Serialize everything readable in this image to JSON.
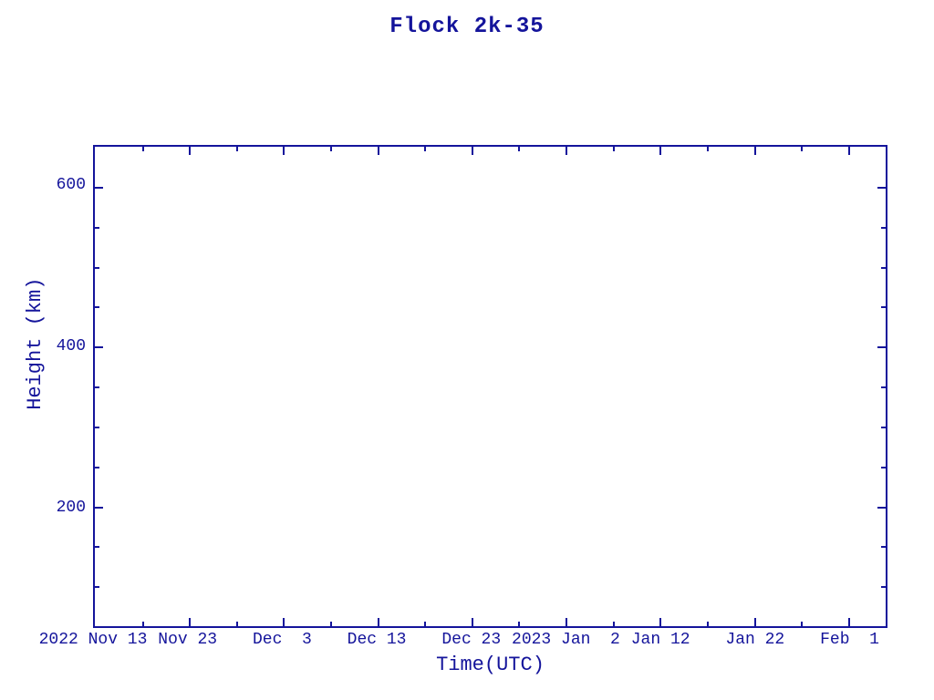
{
  "chart_data": {
    "type": "line",
    "title": "Flock 2k-35",
    "xlabel": "Time(UTC)",
    "ylabel": "Height (km)",
    "plot_color": "#14149b",
    "background": "#ffffff",
    "grid": false,
    "legend": "none",
    "series": [],
    "note_visible_data": "empty plot area - no data points drawn",
    "x_axis": {
      "start_label": "2022 Nov 13",
      "end_value": "2023 Feb 5",
      "span_days": 84,
      "major_ticks": [
        {
          "day": 0,
          "label": "2022 Nov 13"
        },
        {
          "day": 10,
          "label": "Nov 23"
        },
        {
          "day": 20,
          "label": "Dec  3"
        },
        {
          "day": 30,
          "label": "Dec 13"
        },
        {
          "day": 40,
          "label": "Dec 23"
        },
        {
          "day": 50,
          "label": "2023 Jan  2"
        },
        {
          "day": 60,
          "label": "Jan 12"
        },
        {
          "day": 70,
          "label": "Jan 22"
        },
        {
          "day": 80,
          "label": "Feb  1"
        }
      ],
      "minor_tick_days": [
        5,
        15,
        25,
        35,
        45,
        55,
        65,
        75
      ]
    },
    "y_axis": {
      "min": 50,
      "max": 650,
      "major_ticks": [
        {
          "value": 200,
          "label": "200"
        },
        {
          "value": 400,
          "label": "400"
        },
        {
          "value": 600,
          "label": "600"
        }
      ],
      "minor_tick_values": [
        100,
        150,
        250,
        300,
        350,
        450,
        500,
        550
      ]
    }
  }
}
